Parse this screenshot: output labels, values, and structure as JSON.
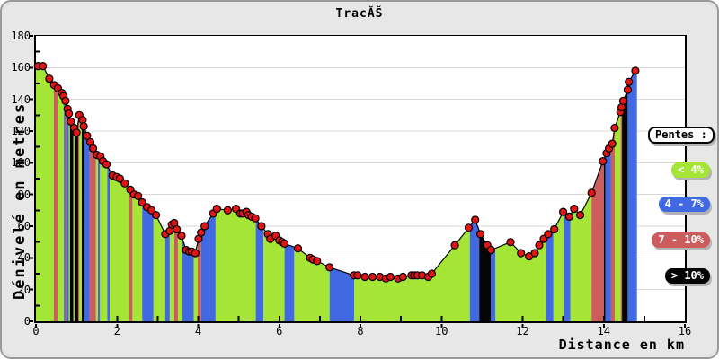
{
  "title": "TracĂŠ",
  "y_axis": {
    "label": "Dénivelé en metres",
    "min": 0,
    "max": 180,
    "ticks": [
      0,
      20,
      40,
      60,
      80,
      100,
      120,
      140,
      160,
      180
    ],
    "minor_step": 10
  },
  "x_axis": {
    "label": "Distance en km",
    "min": 0,
    "max": 16,
    "ticks": [
      0,
      2,
      4,
      6,
      8,
      10,
      12,
      14,
      16
    ],
    "minor_step": 1
  },
  "legend": {
    "title": "Pentes :",
    "items": [
      {
        "id": "lt4",
        "label": "< 4%",
        "color": "#A4E535"
      },
      {
        "id": "b47",
        "label": "4 - 7%",
        "color": "#4169E1"
      },
      {
        "id": "r710",
        "label": "7 - 10%",
        "color": "#CD5C5C"
      },
      {
        "id": "gt10",
        "label": "> 10%",
        "color": "#050505"
      }
    ]
  },
  "colors": {
    "figure_bg": "#E7E7E7",
    "plot_bg": "#FFFFFF",
    "grid": "#D9D9D9",
    "line": "#000000",
    "marker_fill": "#E01616",
    "marker_stroke": "#000000",
    "border": "#9A9A9A"
  },
  "chart_data": {
    "type": "area",
    "title": "TracĂŠ",
    "xlabel": "Distance en km",
    "ylabel": "Dénivelé en metres",
    "xlim": [
      0,
      16
    ],
    "ylim": [
      0,
      180
    ],
    "grid": "horizontal",
    "legend_position": "right",
    "x": [
      0.0,
      0.05,
      0.17,
      0.33,
      0.45,
      0.54,
      0.64,
      0.68,
      0.73,
      0.78,
      0.81,
      0.86,
      0.94,
      1.0,
      1.07,
      1.15,
      1.18,
      1.26,
      1.34,
      1.41,
      1.5,
      1.59,
      1.65,
      1.74,
      1.89,
      1.99,
      2.07,
      2.19,
      2.33,
      2.42,
      2.52,
      2.62,
      2.74,
      2.85,
      2.96,
      3.19,
      3.3,
      3.35,
      3.41,
      3.47,
      3.59,
      3.7,
      3.78,
      3.84,
      3.93,
      4.01,
      4.07,
      4.16,
      4.37,
      4.46,
      4.73,
      4.93,
      5.04,
      5.1,
      5.19,
      5.24,
      5.32,
      5.41,
      5.56,
      5.72,
      5.78,
      5.91,
      6.0,
      6.07,
      6.13,
      6.46,
      6.76,
      6.83,
      6.93,
      7.24,
      7.84,
      7.93,
      8.11,
      8.3,
      8.48,
      8.63,
      8.74,
      8.93,
      9.05,
      9.26,
      9.33,
      9.41,
      9.52,
      9.67,
      9.76,
      10.33,
      10.67,
      10.83,
      10.96,
      11.13,
      11.22,
      11.7,
      11.96,
      12.16,
      12.3,
      12.41,
      12.52,
      12.63,
      12.78,
      13.0,
      13.15,
      13.27,
      13.42,
      13.7,
      13.98,
      14.07,
      14.13,
      14.21,
      14.27,
      14.41,
      14.44,
      14.48,
      14.59,
      14.62,
      14.78,
      14.82
    ],
    "y": [
      160,
      161,
      161,
      153,
      149,
      147,
      144,
      142,
      139,
      134,
      131,
      126,
      122,
      119,
      130,
      127,
      123,
      117,
      113,
      109,
      105,
      104,
      101,
      99,
      92,
      91,
      90,
      87,
      83,
      80,
      79,
      75,
      72,
      70,
      67,
      55,
      57,
      61,
      62,
      58,
      54,
      45,
      44,
      44,
      43,
      52,
      56,
      60,
      68,
      71,
      70,
      71,
      68,
      68,
      69,
      67,
      66,
      65,
      60,
      55,
      52,
      54,
      51,
      50,
      49,
      46,
      40,
      39,
      38,
      34,
      29,
      29,
      28,
      28,
      28,
      27,
      28,
      27,
      28,
      29,
      29,
      29,
      29,
      28,
      30,
      48,
      59,
      64,
      55,
      48,
      45,
      50,
      43,
      41,
      43,
      48,
      52,
      55,
      58,
      69,
      66,
      71,
      67,
      81,
      101,
      106,
      109,
      112,
      122,
      132,
      135,
      139,
      146,
      151,
      158,
      158
    ],
    "slope_classes": {
      "lt4": "< 4%",
      "b47": "4 - 7%",
      "r710": "7 - 10%",
      "gt10": "> 10%"
    },
    "segments": [
      [
        0.0,
        0.44,
        "lt4"
      ],
      [
        0.44,
        0.53,
        "r710"
      ],
      [
        0.53,
        0.69,
        "lt4"
      ],
      [
        0.69,
        0.73,
        "b47"
      ],
      [
        0.73,
        0.76,
        "r710"
      ],
      [
        0.76,
        0.81,
        "b47"
      ],
      [
        0.81,
        0.84,
        "lt4"
      ],
      [
        0.84,
        0.92,
        "gt10"
      ],
      [
        0.92,
        0.95,
        "lt4"
      ],
      [
        0.95,
        1.04,
        "gt10"
      ],
      [
        1.04,
        1.07,
        "r710"
      ],
      [
        1.07,
        1.13,
        "lt4"
      ],
      [
        1.13,
        1.19,
        "gt10"
      ],
      [
        1.19,
        1.32,
        "b47"
      ],
      [
        1.32,
        1.48,
        "r710"
      ],
      [
        1.48,
        1.53,
        "lt4"
      ],
      [
        1.53,
        1.58,
        "b47"
      ],
      [
        1.58,
        1.76,
        "lt4"
      ],
      [
        1.76,
        1.82,
        "b47"
      ],
      [
        1.82,
        2.3,
        "lt4"
      ],
      [
        2.3,
        2.38,
        "r710"
      ],
      [
        2.38,
        2.62,
        "lt4"
      ],
      [
        2.62,
        2.9,
        "b47"
      ],
      [
        2.9,
        3.19,
        "lt4"
      ],
      [
        3.19,
        3.3,
        "b47"
      ],
      [
        3.3,
        3.41,
        "lt4"
      ],
      [
        3.41,
        3.5,
        "r710"
      ],
      [
        3.5,
        3.61,
        "lt4"
      ],
      [
        3.61,
        3.89,
        "b47"
      ],
      [
        3.89,
        3.99,
        "lt4"
      ],
      [
        3.99,
        4.07,
        "r710"
      ],
      [
        4.07,
        4.43,
        "b47"
      ],
      [
        4.43,
        5.42,
        "lt4"
      ],
      [
        5.42,
        5.61,
        "b47"
      ],
      [
        5.61,
        6.13,
        "lt4"
      ],
      [
        6.13,
        6.37,
        "b47"
      ],
      [
        6.37,
        7.24,
        "lt4"
      ],
      [
        7.24,
        7.85,
        "b47"
      ],
      [
        7.85,
        10.7,
        "lt4"
      ],
      [
        10.7,
        10.93,
        "b47"
      ],
      [
        10.93,
        11.22,
        "gt10"
      ],
      [
        11.22,
        11.33,
        "b47"
      ],
      [
        11.33,
        12.58,
        "lt4"
      ],
      [
        12.58,
        12.76,
        "b47"
      ],
      [
        12.76,
        13.02,
        "lt4"
      ],
      [
        13.02,
        13.18,
        "b47"
      ],
      [
        13.18,
        13.7,
        "lt4"
      ],
      [
        13.7,
        14.0,
        "r710"
      ],
      [
        14.0,
        14.04,
        "gt10"
      ],
      [
        14.04,
        14.18,
        "b47"
      ],
      [
        14.18,
        14.27,
        "r710"
      ],
      [
        14.27,
        14.42,
        "lt4"
      ],
      [
        14.42,
        14.45,
        "r710"
      ],
      [
        14.45,
        14.59,
        "gt10"
      ],
      [
        14.59,
        14.82,
        "b47"
      ]
    ]
  }
}
